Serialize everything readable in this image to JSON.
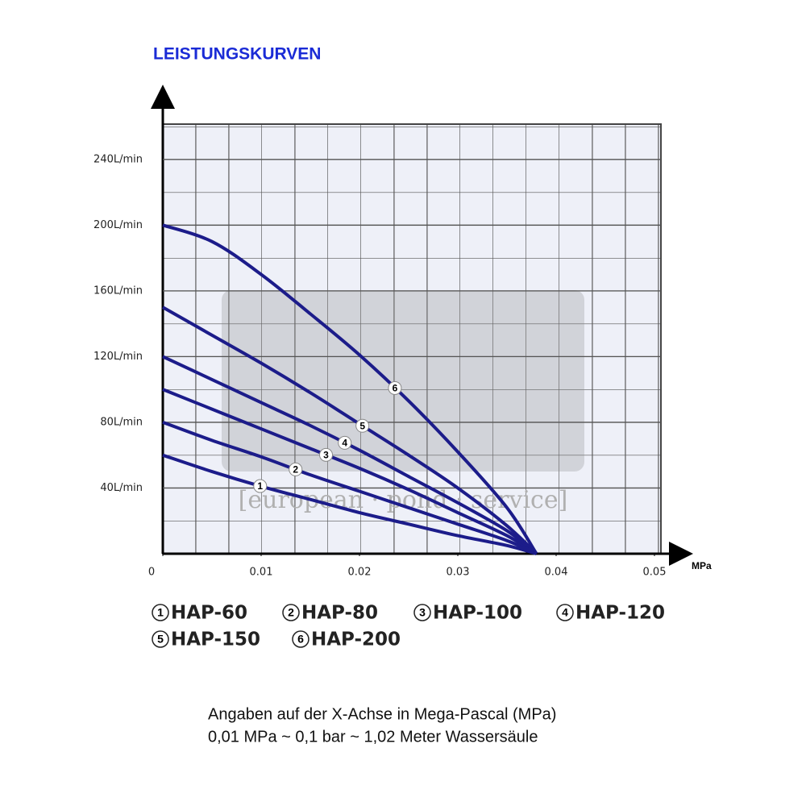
{
  "chart_data": {
    "type": "line",
    "title": "LEISTUNGSKURVEN",
    "x_label": "MPa",
    "watermark": "[european · pond · service]",
    "notes": [
      "Angaben auf der X-Achse in Mega-Pascal (MPa)",
      "0,01 MPa ~ 0,1 bar ~ 1,02 Meter Wassersäule"
    ],
    "x": [
      0,
      0.005,
      0.01,
      0.015,
      0.02,
      0.025,
      0.03,
      0.035,
      0.038
    ],
    "series": [
      {
        "name": "HAP-60",
        "label": "1",
        "color": "#1c1c8a",
        "values": [
          60,
          50,
          41,
          33,
          25,
          18,
          11,
          5,
          0
        ]
      },
      {
        "name": "HAP-80",
        "label": "2",
        "color": "#1c1c8a",
        "values": [
          80,
          69,
          59,
          48,
          38,
          28,
          18,
          8,
          0
        ]
      },
      {
        "name": "HAP-100",
        "label": "3",
        "color": "#1c1c8a",
        "values": [
          100,
          88,
          76,
          64,
          52,
          39,
          25,
          11,
          0
        ]
      },
      {
        "name": "HAP-120",
        "label": "4",
        "color": "#1c1c8a",
        "values": [
          120,
          106,
          92,
          78,
          63,
          47,
          31,
          14,
          0
        ]
      },
      {
        "name": "HAP-150",
        "label": "5",
        "color": "#1c1c8a",
        "values": [
          150,
          133,
          116,
          98,
          79,
          60,
          40,
          17,
          0
        ]
      },
      {
        "name": "HAP-200",
        "label": "6",
        "color": "#1c1c8a",
        "values": [
          200,
          190,
          170,
          146,
          121,
          93,
          62,
          28,
          0
        ]
      }
    ],
    "xlim": [
      0,
      0.05
    ],
    "xticks": [
      0,
      0.01,
      0.02,
      0.03,
      0.04,
      0.05
    ],
    "ylim": [
      0,
      260
    ],
    "yticks": [
      {
        "value": 40,
        "label": "40L/min"
      },
      {
        "value": 80,
        "label": "80L/min"
      },
      {
        "value": 120,
        "label": "120L/min"
      },
      {
        "value": 160,
        "label": "160L/min"
      },
      {
        "value": 200,
        "label": "200L/min"
      },
      {
        "value": 240,
        "label": "240L/min"
      }
    ],
    "grid": true
  }
}
